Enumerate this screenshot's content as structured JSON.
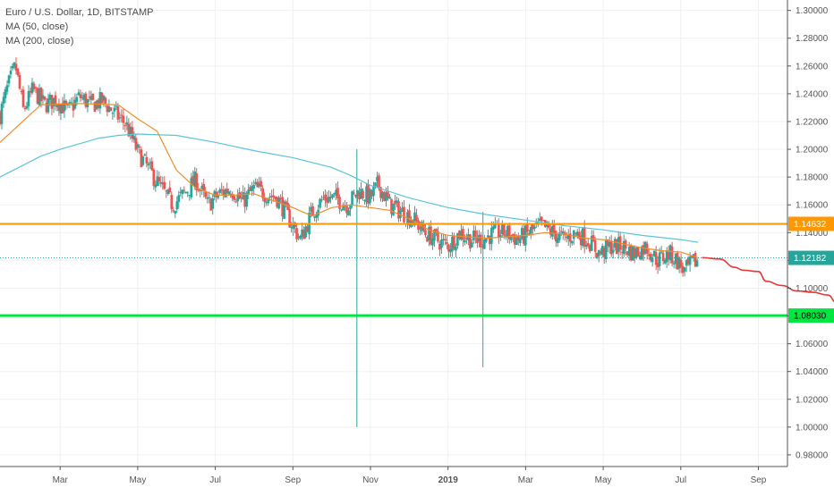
{
  "legend": {
    "title": "Euro / U.S. Dollar, 1D, BITSTAMP",
    "ma50": "MA (50, close)",
    "ma200": "MA (200, close)"
  },
  "colors": {
    "up": "#26a69a",
    "down": "#ef5350",
    "ma50": "#f28c28",
    "ma200": "#5bc4d9",
    "resistance": "#ff9800",
    "support": "#00e640",
    "current": "#26a69a",
    "projection": "#e53935"
  },
  "chart_data": {
    "type": "candlestick",
    "x_ticks": [
      "Mar",
      "May",
      "Jul",
      "Sep",
      "Nov",
      "2019",
      "Mar",
      "May",
      "Jul",
      "Sep"
    ],
    "y_ticks": [
      "1.30000",
      "1.28000",
      "1.26000",
      "1.24000",
      "1.22000",
      "1.20000",
      "1.18000",
      "1.16000",
      "1.14000",
      "1.12000",
      "1.10000",
      "1.08000",
      "1.06000",
      "1.04000",
      "1.02000",
      "1.00000",
      "0.98000"
    ],
    "ylim": [
      0.9716,
      1.3075
    ],
    "x_range_months": [
      -0.55,
      19.75
    ],
    "price_labels": {
      "resistance": "1.14632",
      "current": "1.12182",
      "support": "1.08030"
    },
    "levels": {
      "resistance": 1.14632,
      "current": 1.12182,
      "support": 1.0803
    },
    "close_path": [
      [
        -0.55,
        1.225
      ],
      [
        -0.35,
        1.245
      ],
      [
        -0.15,
        1.26
      ],
      [
        0.05,
        1.228
      ],
      [
        0.3,
        1.243
      ],
      [
        0.6,
        1.232
      ],
      [
        0.9,
        1.236
      ],
      [
        1.2,
        1.227
      ],
      [
        1.5,
        1.238
      ],
      [
        1.8,
        1.232
      ],
      [
        2.1,
        1.235
      ],
      [
        2.4,
        1.226
      ],
      [
        2.7,
        1.218
      ],
      [
        3.0,
        1.198
      ],
      [
        3.3,
        1.185
      ],
      [
        3.6,
        1.172
      ],
      [
        3.9,
        1.16
      ],
      [
        4.2,
        1.168
      ],
      [
        4.5,
        1.178
      ],
      [
        4.8,
        1.16
      ],
      [
        5.1,
        1.168
      ],
      [
        5.4,
        1.172
      ],
      [
        5.7,
        1.162
      ],
      [
        6.0,
        1.172
      ],
      [
        6.3,
        1.168
      ],
      [
        6.6,
        1.165
      ],
      [
        6.9,
        1.15
      ],
      [
        7.2,
        1.135
      ],
      [
        7.5,
        1.155
      ],
      [
        7.8,
        1.165
      ],
      [
        8.1,
        1.165
      ],
      [
        8.4,
        1.16
      ],
      [
        8.7,
        1.17
      ],
      [
        9.0,
        1.165
      ],
      [
        9.2,
        1.175
      ],
      [
        9.5,
        1.16
      ],
      [
        9.8,
        1.155
      ],
      [
        10.1,
        1.15
      ],
      [
        10.4,
        1.14
      ],
      [
        10.7,
        1.135
      ],
      [
        11.0,
        1.13
      ],
      [
        11.3,
        1.14
      ],
      [
        11.6,
        1.135
      ],
      [
        11.9,
        1.135
      ],
      [
        12.2,
        1.14
      ],
      [
        12.5,
        1.14
      ],
      [
        12.8,
        1.135
      ],
      [
        13.1,
        1.14
      ],
      [
        13.4,
        1.145
      ],
      [
        13.7,
        1.14
      ],
      [
        14.0,
        1.135
      ],
      [
        14.3,
        1.14
      ],
      [
        14.6,
        1.135
      ],
      [
        14.9,
        1.125
      ],
      [
        15.2,
        1.13
      ],
      [
        15.5,
        1.13
      ],
      [
        15.8,
        1.125
      ],
      [
        16.1,
        1.13
      ],
      [
        16.4,
        1.12
      ],
      [
        16.7,
        1.125
      ],
      [
        16.9,
        1.12
      ],
      [
        17.1,
        1.112
      ],
      [
        17.3,
        1.118
      ],
      [
        17.45,
        1.12
      ]
    ],
    "wick_spikes": [
      {
        "month": 8.65,
        "high": 1.2,
        "low": 1.0
      },
      {
        "month": 11.9,
        "high": 1.155,
        "low": 1.043
      }
    ],
    "ma50": [
      [
        -0.55,
        1.205
      ],
      [
        0.5,
        1.232
      ],
      [
        1.5,
        1.233
      ],
      [
        2.5,
        1.232
      ],
      [
        3.0,
        1.222
      ],
      [
        3.5,
        1.213
      ],
      [
        4.0,
        1.185
      ],
      [
        4.5,
        1.172
      ],
      [
        5.0,
        1.167
      ],
      [
        5.5,
        1.167
      ],
      [
        6.0,
        1.168
      ],
      [
        6.5,
        1.163
      ],
      [
        7.0,
        1.158
      ],
      [
        7.5,
        1.152
      ],
      [
        8.0,
        1.158
      ],
      [
        8.5,
        1.16
      ],
      [
        9.0,
        1.158
      ],
      [
        9.5,
        1.156
      ],
      [
        10.0,
        1.15
      ],
      [
        10.5,
        1.142
      ],
      [
        11.0,
        1.138
      ],
      [
        11.5,
        1.137
      ],
      [
        12.0,
        1.136
      ],
      [
        12.5,
        1.137
      ],
      [
        13.0,
        1.138
      ],
      [
        13.5,
        1.14
      ],
      [
        14.0,
        1.139
      ],
      [
        14.5,
        1.136
      ],
      [
        15.0,
        1.135
      ],
      [
        15.5,
        1.132
      ],
      [
        16.0,
        1.129
      ],
      [
        16.5,
        1.127
      ],
      [
        17.0,
        1.126
      ],
      [
        17.45,
        1.122
      ]
    ],
    "ma200": [
      [
        -0.55,
        1.18
      ],
      [
        0.5,
        1.195
      ],
      [
        1.0,
        1.2
      ],
      [
        2.0,
        1.208
      ],
      [
        2.5,
        1.21
      ],
      [
        3.0,
        1.211
      ],
      [
        4.0,
        1.21
      ],
      [
        5.0,
        1.205
      ],
      [
        6.0,
        1.199
      ],
      [
        7.0,
        1.194
      ],
      [
        8.0,
        1.187
      ],
      [
        8.5,
        1.181
      ],
      [
        9.0,
        1.174
      ],
      [
        10.0,
        1.165
      ],
      [
        11.0,
        1.158
      ],
      [
        12.0,
        1.153
      ],
      [
        13.0,
        1.149
      ],
      [
        14.0,
        1.145
      ],
      [
        15.0,
        1.142
      ],
      [
        16.0,
        1.138
      ],
      [
        17.0,
        1.135
      ],
      [
        17.45,
        1.133
      ]
    ],
    "projection": [
      [
        17.55,
        1.122
      ],
      [
        18.0,
        1.121
      ],
      [
        18.4,
        1.115
      ],
      [
        18.6,
        1.113
      ],
      [
        19.0,
        1.112
      ],
      [
        19.2,
        1.105
      ],
      [
        19.6,
        1.102
      ],
      [
        20.0,
        1.098
      ],
      [
        20.4,
        1.097
      ],
      [
        20.8,
        1.095
      ],
      [
        21.0,
        1.09
      ],
      [
        21.15,
        1.083
      ]
    ]
  }
}
